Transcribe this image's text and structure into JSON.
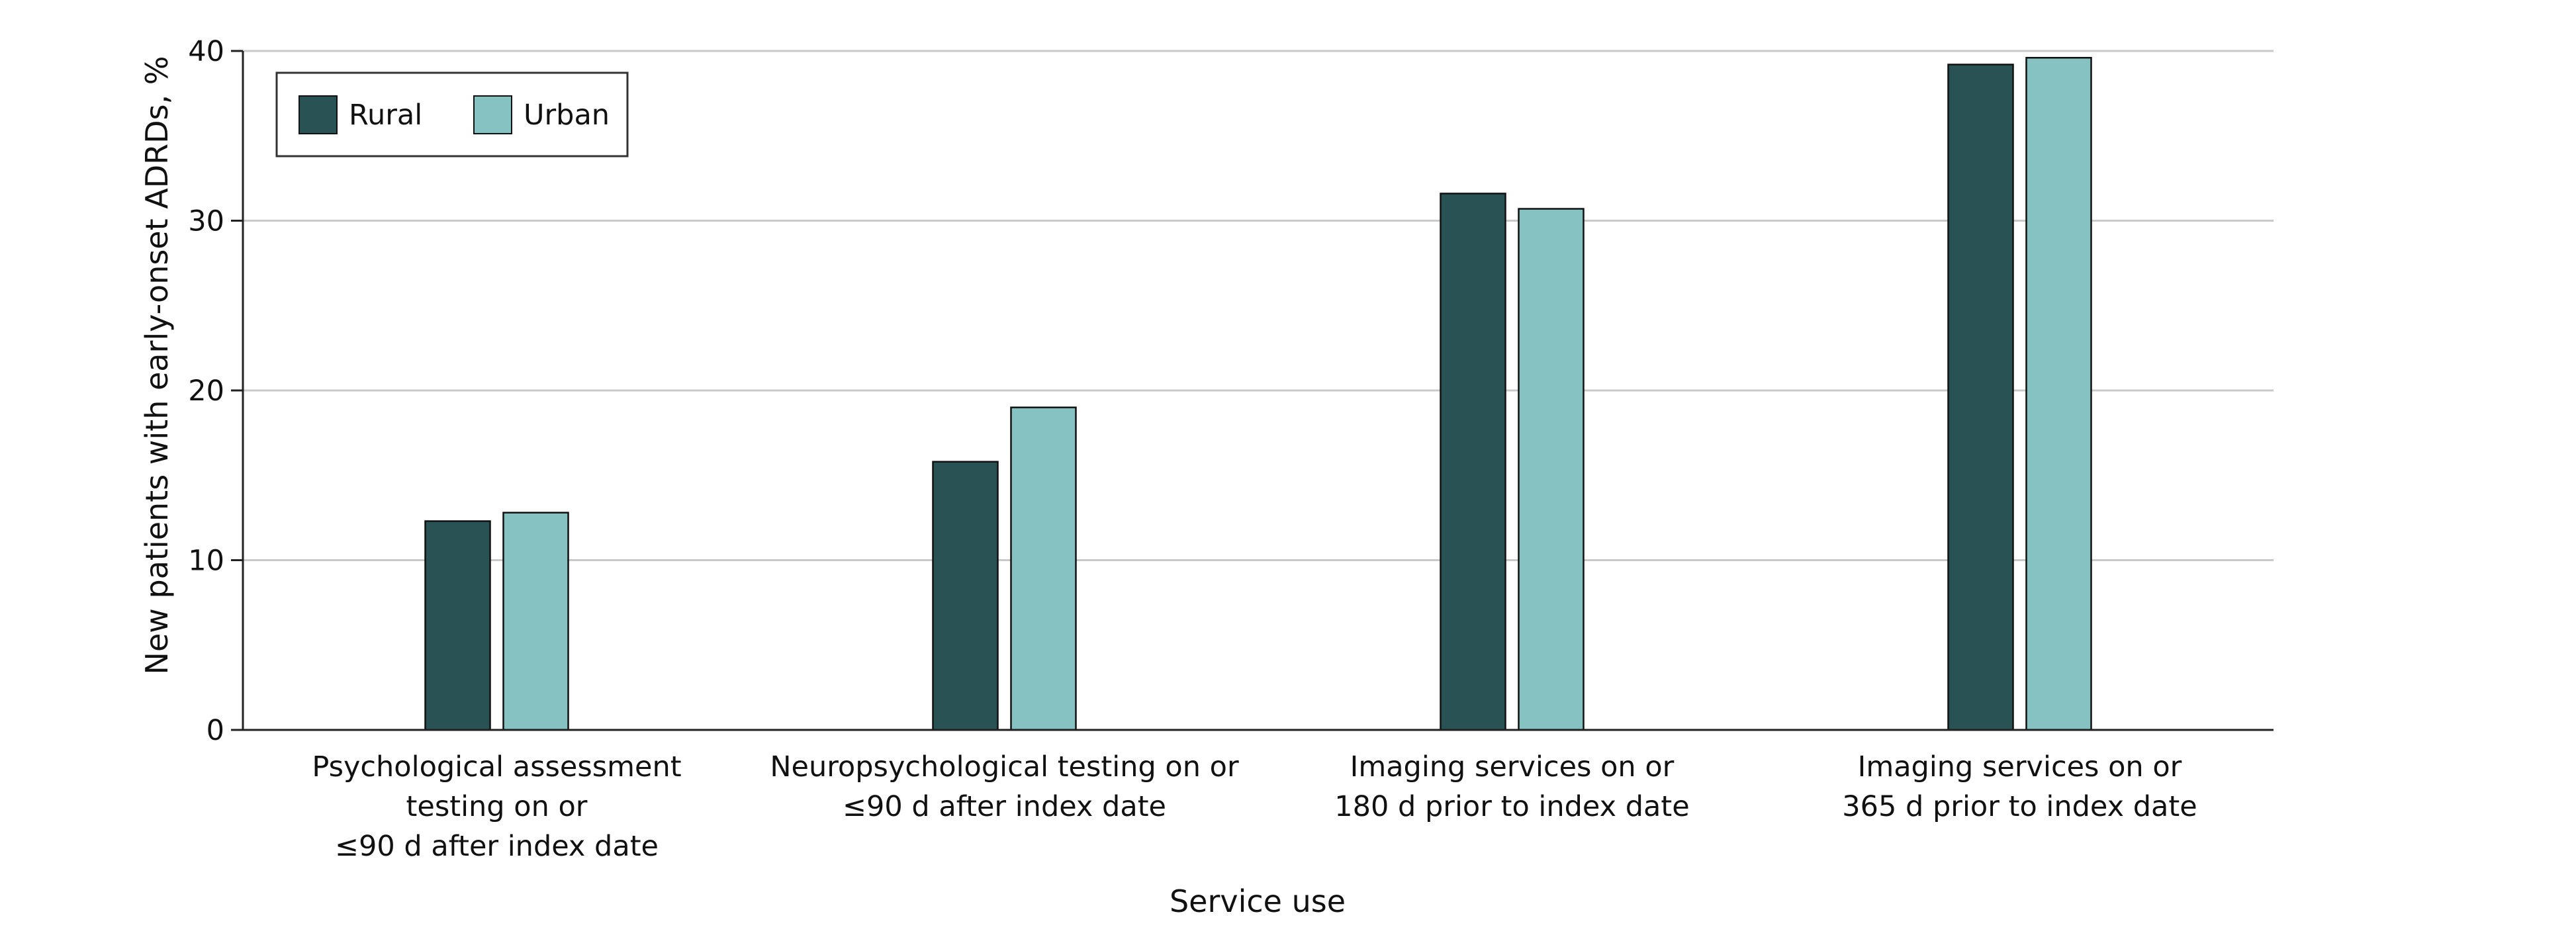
{
  "chart_data": {
    "type": "bar",
    "categories": [
      [
        "Psychological assessment",
        "testing on or",
        "≤90 d after index date"
      ],
      [
        "Neuropsychological testing on or",
        "≤90 d after index date"
      ],
      [
        "Imaging services on or",
        "180 d prior to index date"
      ],
      [
        "Imaging services on or",
        "365 d prior to index date"
      ]
    ],
    "series": [
      {
        "name": "Rural",
        "color": "#285254",
        "values": [
          12.3,
          15.8,
          31.6,
          39.2
        ]
      },
      {
        "name": "Urban",
        "color": "#86c2c1",
        "values": [
          12.8,
          19.0,
          30.7,
          39.6
        ]
      }
    ],
    "xlabel": "Service use",
    "ylabel": "New patients with early-onset ADRDs, %",
    "ylim": [
      0,
      40
    ],
    "yticks": [
      0,
      10,
      20,
      30,
      40
    ],
    "grid": true,
    "legend_position": "top-left"
  }
}
